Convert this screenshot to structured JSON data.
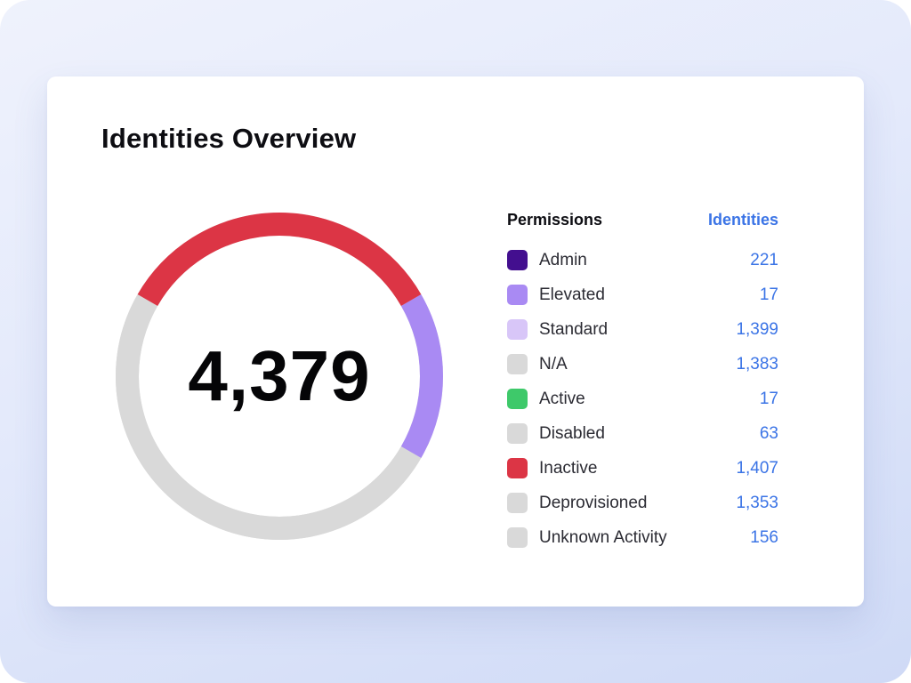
{
  "card": {
    "title": "Identities Overview"
  },
  "donut": {
    "total_label": "4,379",
    "track_color": "#d9d9d9",
    "segments": [
      {
        "name": "Elevated",
        "color": "#a98af3",
        "start_deg": 60,
        "end_deg": 120
      },
      {
        "name": "N/A",
        "color": "#d9d9d9",
        "start_deg": 120,
        "end_deg": 300
      },
      {
        "name": "Inactive",
        "color": "#dc3545",
        "start_deg": 300,
        "end_deg": 420
      }
    ]
  },
  "legend": {
    "header_left": "Permissions",
    "header_right": "Identities",
    "rows": [
      {
        "label": "Admin",
        "value": "221",
        "color": "#430f8f",
        "icon": "square-swatch"
      },
      {
        "label": "Elevated",
        "value": "17",
        "color": "#a98af3",
        "icon": "square-swatch"
      },
      {
        "label": "Standard",
        "value": "1,399",
        "color": "#d8c6f8",
        "icon": "square-swatch"
      },
      {
        "label": "N/A",
        "value": "1,383",
        "color": "#d9d9d9",
        "icon": "square-swatch"
      },
      {
        "label": "Active",
        "value": "17",
        "color": "#3ec96a",
        "icon": "square-swatch"
      },
      {
        "label": "Disabled",
        "value": "63",
        "color": "#d9d9d9",
        "icon": "square-swatch"
      },
      {
        "label": "Inactive",
        "value": "1,407",
        "color": "#dc3545",
        "icon": "square-swatch"
      },
      {
        "label": "Deprovisioned",
        "value": "1,353",
        "color": "#d9d9d9",
        "icon": "square-swatch"
      },
      {
        "label": "Unknown Activity",
        "value": "156",
        "color": "#d9d9d9",
        "icon": "square-swatch"
      }
    ]
  },
  "colors": {
    "accent": "#3b74e6",
    "title": "#0d0d12"
  }
}
